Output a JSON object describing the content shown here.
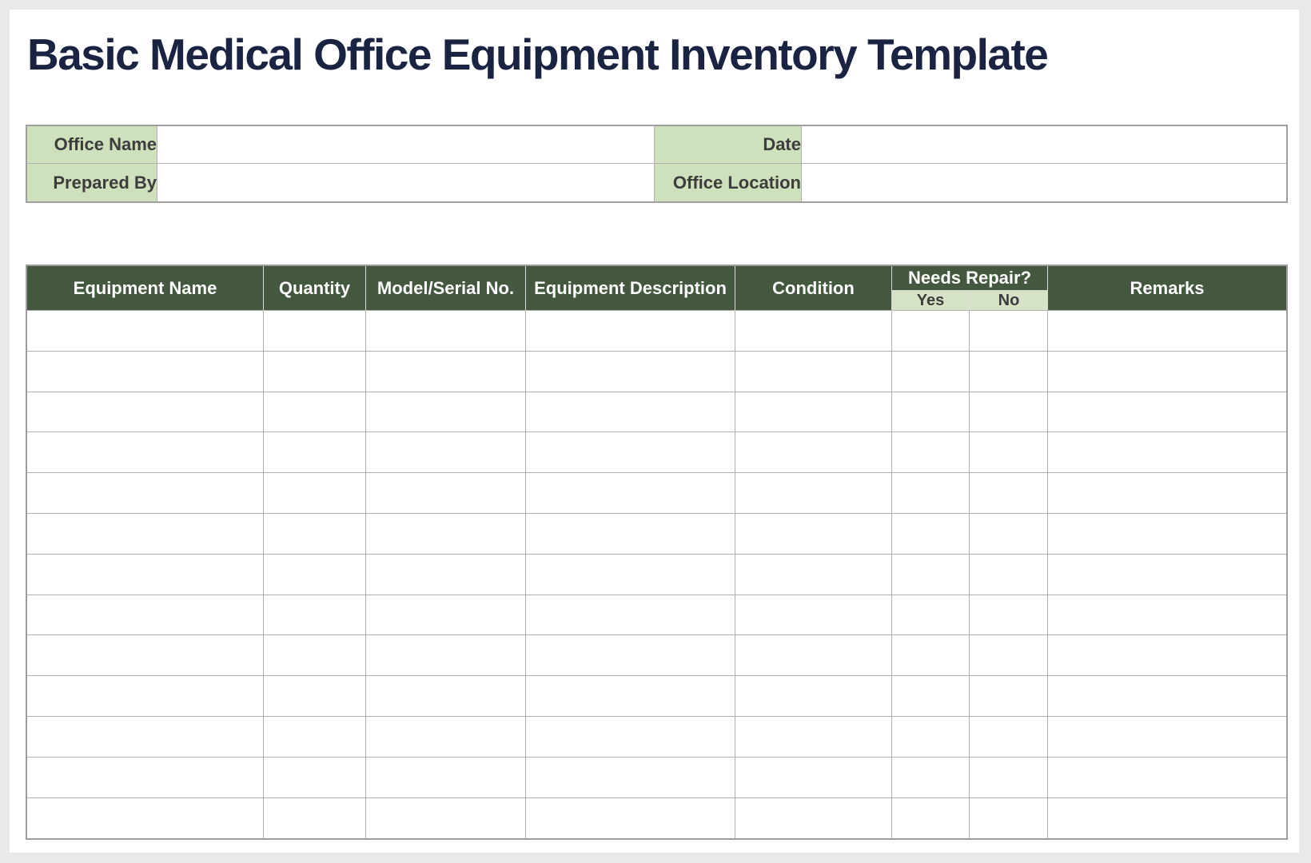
{
  "title": "Basic Medical Office Equipment Inventory Template",
  "office_info": {
    "fields": [
      {
        "label": "Office Name",
        "value": ""
      },
      {
        "label": "Date",
        "value": ""
      },
      {
        "label": "Prepared By",
        "value": ""
      },
      {
        "label": "Office Location",
        "value": ""
      }
    ]
  },
  "inventory_table": {
    "columns": [
      "Equipment Name",
      "Quantity",
      "Model/Serial No.",
      "Equipment Description",
      "Condition"
    ],
    "needs_repair": {
      "label": "Needs Repair?",
      "options": [
        "Yes",
        "No"
      ]
    },
    "remarks_label": "Remarks",
    "row_count": 13,
    "rows": [
      [
        "",
        "",
        "",
        "",
        "",
        "",
        "",
        ""
      ],
      [
        "",
        "",
        "",
        "",
        "",
        "",
        "",
        ""
      ],
      [
        "",
        "",
        "",
        "",
        "",
        "",
        "",
        ""
      ],
      [
        "",
        "",
        "",
        "",
        "",
        "",
        "",
        ""
      ],
      [
        "",
        "",
        "",
        "",
        "",
        "",
        "",
        ""
      ],
      [
        "",
        "",
        "",
        "",
        "",
        "",
        "",
        ""
      ],
      [
        "",
        "",
        "",
        "",
        "",
        "",
        "",
        ""
      ],
      [
        "",
        "",
        "",
        "",
        "",
        "",
        "",
        ""
      ],
      [
        "",
        "",
        "",
        "",
        "",
        "",
        "",
        ""
      ],
      [
        "",
        "",
        "",
        "",
        "",
        "",
        "",
        ""
      ],
      [
        "",
        "",
        "",
        "",
        "",
        "",
        "",
        ""
      ],
      [
        "",
        "",
        "",
        "",
        "",
        "",
        "",
        ""
      ],
      [
        "",
        "",
        "",
        "",
        "",
        "",
        "",
        ""
      ]
    ]
  },
  "colors": {
    "title_navy": "#1A2342",
    "header_green": "#44573F",
    "label_green": "#CFE0BC",
    "subheader_green": "#D6E3C6",
    "label_text": "#3D3D3D",
    "grid_line": "#B0B0B0",
    "grid_outer": "#9E9E9E",
    "header_divider": "#D9D9D9",
    "page_background": "#FFFFFF",
    "canvas_background": "#E9E9E9"
  }
}
